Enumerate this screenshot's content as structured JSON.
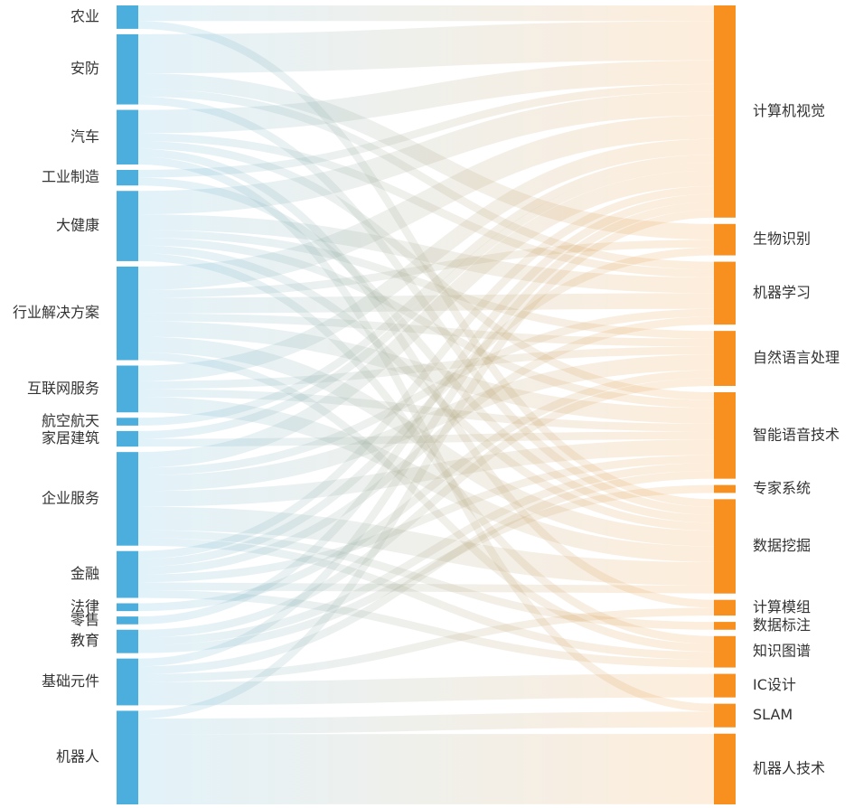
{
  "diagram": {
    "type": "sankey",
    "colors": {
      "left_node": "#4BAEDD",
      "right_node": "#F7901E",
      "link_start": "#4BAEDD",
      "link_end": "#F7901E"
    },
    "left_nodes": [
      {
        "id": "agriculture",
        "label": "农业"
      },
      {
        "id": "security",
        "label": "安防"
      },
      {
        "id": "automotive",
        "label": "汽车"
      },
      {
        "id": "manufacturing",
        "label": "工业制造"
      },
      {
        "id": "health",
        "label": "大健康"
      },
      {
        "id": "industry-solutions",
        "label": "行业解决方案"
      },
      {
        "id": "internet-services",
        "label": "互联网服务"
      },
      {
        "id": "aerospace",
        "label": "航空航天"
      },
      {
        "id": "home-building",
        "label": "家居建筑"
      },
      {
        "id": "enterprise-services",
        "label": "企业服务"
      },
      {
        "id": "finance",
        "label": "金融"
      },
      {
        "id": "legal",
        "label": "法律"
      },
      {
        "id": "retail",
        "label": "零售"
      },
      {
        "id": "education",
        "label": "教育"
      },
      {
        "id": "components",
        "label": "基础元件"
      },
      {
        "id": "robotics",
        "label": "机器人"
      }
    ],
    "right_nodes": [
      {
        "id": "computer-vision",
        "label": "计算机视觉"
      },
      {
        "id": "biometrics",
        "label": "生物识别"
      },
      {
        "id": "machine-learning",
        "label": "机器学习"
      },
      {
        "id": "nlp",
        "label": "自然语言处理"
      },
      {
        "id": "speech",
        "label": "智能语音技术"
      },
      {
        "id": "expert-systems",
        "label": "专家系统"
      },
      {
        "id": "data-mining",
        "label": "数据挖掘"
      },
      {
        "id": "computing-modules",
        "label": "计算模组"
      },
      {
        "id": "data-labeling",
        "label": "数据标注"
      },
      {
        "id": "knowledge-graph",
        "label": "知识图谱"
      },
      {
        "id": "ic-design",
        "label": "IC设计"
      },
      {
        "id": "slam",
        "label": "SLAM"
      },
      {
        "id": "robot-tech",
        "label": "机器人技术"
      }
    ],
    "links": [
      {
        "source": "agriculture",
        "target": "computer-vision",
        "value": 2
      },
      {
        "source": "agriculture",
        "target": "data-mining",
        "value": 1
      },
      {
        "source": "security",
        "target": "computer-vision",
        "value": 5
      },
      {
        "source": "security",
        "target": "biometrics",
        "value": 2
      },
      {
        "source": "security",
        "target": "machine-learning",
        "value": 1
      },
      {
        "source": "security",
        "target": "data-mining",
        "value": 1
      },
      {
        "source": "automotive",
        "target": "computer-vision",
        "value": 3
      },
      {
        "source": "automotive",
        "target": "machine-learning",
        "value": 1
      },
      {
        "source": "automotive",
        "target": "speech",
        "value": 1
      },
      {
        "source": "automotive",
        "target": "slam",
        "value": 1
      },
      {
        "source": "automotive",
        "target": "computing-modules",
        "value": 1
      },
      {
        "source": "manufacturing",
        "target": "computer-vision",
        "value": 1
      },
      {
        "source": "manufacturing",
        "target": "data-mining",
        "value": 1
      },
      {
        "source": "health",
        "target": "computer-vision",
        "value": 3
      },
      {
        "source": "health",
        "target": "machine-learning",
        "value": 2
      },
      {
        "source": "health",
        "target": "nlp",
        "value": 1
      },
      {
        "source": "health",
        "target": "speech",
        "value": 1
      },
      {
        "source": "health",
        "target": "knowledge-graph",
        "value": 1
      },
      {
        "source": "health",
        "target": "data-mining",
        "value": 1
      },
      {
        "source": "industry-solutions",
        "target": "computer-vision",
        "value": 3
      },
      {
        "source": "industry-solutions",
        "target": "machine-learning",
        "value": 2
      },
      {
        "source": "industry-solutions",
        "target": "nlp",
        "value": 1
      },
      {
        "source": "industry-solutions",
        "target": "speech",
        "value": 2
      },
      {
        "source": "industry-solutions",
        "target": "data-mining",
        "value": 2
      },
      {
        "source": "industry-solutions",
        "target": "knowledge-graph",
        "value": 1
      },
      {
        "source": "industry-solutions",
        "target": "biometrics",
        "value": 1
      },
      {
        "source": "internet-services",
        "target": "computer-vision",
        "value": 2
      },
      {
        "source": "internet-services",
        "target": "nlp",
        "value": 1
      },
      {
        "source": "internet-services",
        "target": "speech",
        "value": 1
      },
      {
        "source": "internet-services",
        "target": "data-mining",
        "value": 2
      },
      {
        "source": "aerospace",
        "target": "computer-vision",
        "value": 1
      },
      {
        "source": "home-building",
        "target": "speech",
        "value": 1
      },
      {
        "source": "home-building",
        "target": "computer-vision",
        "value": 1
      },
      {
        "source": "enterprise-services",
        "target": "computer-vision",
        "value": 2
      },
      {
        "source": "enterprise-services",
        "target": "machine-learning",
        "value": 1
      },
      {
        "source": "enterprise-services",
        "target": "nlp",
        "value": 2
      },
      {
        "source": "enterprise-services",
        "target": "speech",
        "value": 2
      },
      {
        "source": "enterprise-services",
        "target": "data-mining",
        "value": 3
      },
      {
        "source": "enterprise-services",
        "target": "data-labeling",
        "value": 1
      },
      {
        "source": "enterprise-services",
        "target": "knowledge-graph",
        "value": 1
      },
      {
        "source": "finance",
        "target": "computer-vision",
        "value": 1
      },
      {
        "source": "finance",
        "target": "biometrics",
        "value": 1
      },
      {
        "source": "finance",
        "target": "machine-learning",
        "value": 1
      },
      {
        "source": "finance",
        "target": "speech",
        "value": 1
      },
      {
        "source": "finance",
        "target": "data-mining",
        "value": 1
      },
      {
        "source": "finance",
        "target": "knowledge-graph",
        "value": 1
      },
      {
        "source": "legal",
        "target": "nlp",
        "value": 1
      },
      {
        "source": "retail",
        "target": "computer-vision",
        "value": 1
      },
      {
        "source": "education",
        "target": "speech",
        "value": 1
      },
      {
        "source": "education",
        "target": "nlp",
        "value": 1
      },
      {
        "source": "education",
        "target": "expert-systems",
        "value": 1
      },
      {
        "source": "components",
        "target": "ic-design",
        "value": 3
      },
      {
        "source": "components",
        "target": "computing-modules",
        "value": 1
      },
      {
        "source": "components",
        "target": "speech",
        "value": 1
      },
      {
        "source": "components",
        "target": "computer-vision",
        "value": 1
      },
      {
        "source": "robotics",
        "target": "robot-tech",
        "value": 9
      },
      {
        "source": "robotics",
        "target": "slam",
        "value": 2
      },
      {
        "source": "robotics",
        "target": "computer-vision",
        "value": 1
      }
    ]
  }
}
